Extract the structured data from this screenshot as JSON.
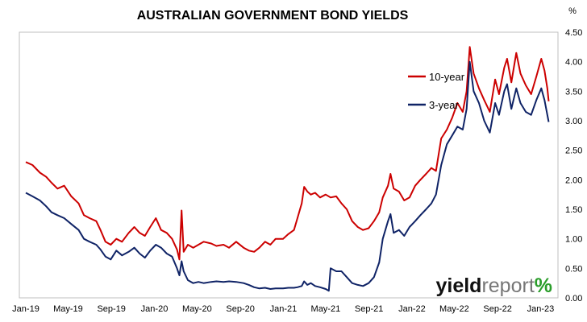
{
  "chart_data": {
    "type": "line",
    "title": "AUSTRALIAN GOVERNMENT BOND YIELDS",
    "xlabel": "",
    "ylabel": "%",
    "ylim": [
      0,
      4.5
    ],
    "y_ticks": [
      "0.00",
      "0.50",
      "1.00",
      "1.50",
      "2.00",
      "2.50",
      "3.00",
      "3.50",
      "4.00",
      "4.50"
    ],
    "x_ticks": [
      "Jan-19",
      "May-19",
      "Sep-19",
      "Jan-20",
      "May-20",
      "Sep-20",
      "Jan-21",
      "May-21",
      "Sep-21",
      "Jan-22",
      "May-22",
      "Sep-22",
      "Jan-23"
    ],
    "grid": false,
    "legend_position": "upper-right",
    "series": [
      {
        "name": "10-year",
        "color": "#cc0000",
        "points": [
          [
            "2019-01-01",
            2.3
          ],
          [
            "2019-01-20",
            2.25
          ],
          [
            "2019-02-10",
            2.12
          ],
          [
            "2019-02-28",
            2.05
          ],
          [
            "2019-03-15",
            1.95
          ],
          [
            "2019-04-01",
            1.85
          ],
          [
            "2019-04-20",
            1.9
          ],
          [
            "2019-05-10",
            1.72
          ],
          [
            "2019-05-31",
            1.6
          ],
          [
            "2019-06-15",
            1.4
          ],
          [
            "2019-07-01",
            1.35
          ],
          [
            "2019-07-20",
            1.3
          ],
          [
            "2019-08-01",
            1.15
          ],
          [
            "2019-08-15",
            0.95
          ],
          [
            "2019-08-30",
            0.9
          ],
          [
            "2019-09-15",
            1.0
          ],
          [
            "2019-10-01",
            0.95
          ],
          [
            "2019-10-20",
            1.1
          ],
          [
            "2019-11-05",
            1.2
          ],
          [
            "2019-11-20",
            1.1
          ],
          [
            "2019-12-05",
            1.05
          ],
          [
            "2019-12-20",
            1.2
          ],
          [
            "2020-01-05",
            1.35
          ],
          [
            "2020-01-20",
            1.15
          ],
          [
            "2020-02-05",
            1.1
          ],
          [
            "2020-02-20",
            1.0
          ],
          [
            "2020-03-05",
            0.82
          ],
          [
            "2020-03-12",
            0.65
          ],
          [
            "2020-03-18",
            1.48
          ],
          [
            "2020-03-24",
            0.78
          ],
          [
            "2020-04-05",
            0.9
          ],
          [
            "2020-04-20",
            0.85
          ],
          [
            "2020-05-05",
            0.9
          ],
          [
            "2020-05-20",
            0.95
          ],
          [
            "2020-06-10",
            0.92
          ],
          [
            "2020-06-25",
            0.88
          ],
          [
            "2020-07-15",
            0.9
          ],
          [
            "2020-07-31",
            0.85
          ],
          [
            "2020-08-20",
            0.95
          ],
          [
            "2020-09-10",
            0.85
          ],
          [
            "2020-09-25",
            0.8
          ],
          [
            "2020-10-10",
            0.78
          ],
          [
            "2020-10-25",
            0.85
          ],
          [
            "2020-11-10",
            0.95
          ],
          [
            "2020-11-25",
            0.9
          ],
          [
            "2020-12-10",
            1.0
          ],
          [
            "2020-12-31",
            1.0
          ],
          [
            "2021-01-15",
            1.08
          ],
          [
            "2021-01-31",
            1.15
          ],
          [
            "2021-02-10",
            1.35
          ],
          [
            "2021-02-22",
            1.6
          ],
          [
            "2021-03-01",
            1.88
          ],
          [
            "2021-03-10",
            1.8
          ],
          [
            "2021-03-20",
            1.75
          ],
          [
            "2021-04-01",
            1.78
          ],
          [
            "2021-04-15",
            1.7
          ],
          [
            "2021-05-01",
            1.75
          ],
          [
            "2021-05-15",
            1.7
          ],
          [
            "2021-05-31",
            1.72
          ],
          [
            "2021-06-15",
            1.6
          ],
          [
            "2021-06-30",
            1.5
          ],
          [
            "2021-07-15",
            1.3
          ],
          [
            "2021-07-31",
            1.2
          ],
          [
            "2021-08-15",
            1.15
          ],
          [
            "2021-08-31",
            1.18
          ],
          [
            "2021-09-15",
            1.3
          ],
          [
            "2021-09-30",
            1.45
          ],
          [
            "2021-10-10",
            1.7
          ],
          [
            "2021-10-25",
            1.9
          ],
          [
            "2021-11-01",
            2.1
          ],
          [
            "2021-11-10",
            1.85
          ],
          [
            "2021-11-25",
            1.8
          ],
          [
            "2021-12-10",
            1.65
          ],
          [
            "2021-12-25",
            1.7
          ],
          [
            "2022-01-10",
            1.9
          ],
          [
            "2022-01-25",
            2.0
          ],
          [
            "2022-02-10",
            2.1
          ],
          [
            "2022-02-25",
            2.2
          ],
          [
            "2022-03-10",
            2.15
          ],
          [
            "2022-03-25",
            2.7
          ],
          [
            "2022-04-10",
            2.85
          ],
          [
            "2022-04-25",
            3.05
          ],
          [
            "2022-05-10",
            3.3
          ],
          [
            "2022-05-25",
            3.15
          ],
          [
            "2022-06-05",
            3.5
          ],
          [
            "2022-06-14",
            4.25
          ],
          [
            "2022-06-25",
            3.8
          ],
          [
            "2022-07-10",
            3.55
          ],
          [
            "2022-07-25",
            3.35
          ],
          [
            "2022-08-10",
            3.15
          ],
          [
            "2022-08-25",
            3.7
          ],
          [
            "2022-09-05",
            3.45
          ],
          [
            "2022-09-20",
            3.9
          ],
          [
            "2022-09-28",
            4.05
          ],
          [
            "2022-10-10",
            3.65
          ],
          [
            "2022-10-24",
            4.15
          ],
          [
            "2022-11-05",
            3.8
          ],
          [
            "2022-11-20",
            3.6
          ],
          [
            "2022-12-05",
            3.45
          ],
          [
            "2022-12-20",
            3.75
          ],
          [
            "2023-01-03",
            4.05
          ],
          [
            "2023-01-12",
            3.85
          ],
          [
            "2023-01-20",
            3.55
          ],
          [
            "2023-01-24",
            3.33
          ]
        ]
      },
      {
        "name": "3-year",
        "color": "#0f2366",
        "points": [
          [
            "2019-01-01",
            1.78
          ],
          [
            "2019-01-20",
            1.72
          ],
          [
            "2019-02-10",
            1.65
          ],
          [
            "2019-02-28",
            1.55
          ],
          [
            "2019-03-15",
            1.45
          ],
          [
            "2019-04-01",
            1.4
          ],
          [
            "2019-04-20",
            1.35
          ],
          [
            "2019-05-10",
            1.25
          ],
          [
            "2019-05-31",
            1.15
          ],
          [
            "2019-06-15",
            1.0
          ],
          [
            "2019-07-01",
            0.95
          ],
          [
            "2019-07-20",
            0.9
          ],
          [
            "2019-08-01",
            0.82
          ],
          [
            "2019-08-15",
            0.7
          ],
          [
            "2019-08-30",
            0.65
          ],
          [
            "2019-09-15",
            0.8
          ],
          [
            "2019-10-01",
            0.72
          ],
          [
            "2019-10-20",
            0.78
          ],
          [
            "2019-11-05",
            0.85
          ],
          [
            "2019-11-20",
            0.75
          ],
          [
            "2019-12-05",
            0.68
          ],
          [
            "2019-12-20",
            0.8
          ],
          [
            "2020-01-05",
            0.9
          ],
          [
            "2020-01-20",
            0.85
          ],
          [
            "2020-02-05",
            0.75
          ],
          [
            "2020-02-20",
            0.7
          ],
          [
            "2020-03-05",
            0.5
          ],
          [
            "2020-03-12",
            0.38
          ],
          [
            "2020-03-18",
            0.62
          ],
          [
            "2020-03-24",
            0.45
          ],
          [
            "2020-04-05",
            0.3
          ],
          [
            "2020-04-20",
            0.25
          ],
          [
            "2020-05-05",
            0.27
          ],
          [
            "2020-05-20",
            0.25
          ],
          [
            "2020-06-10",
            0.27
          ],
          [
            "2020-06-25",
            0.28
          ],
          [
            "2020-07-15",
            0.27
          ],
          [
            "2020-07-31",
            0.28
          ],
          [
            "2020-08-20",
            0.27
          ],
          [
            "2020-09-10",
            0.25
          ],
          [
            "2020-09-25",
            0.22
          ],
          [
            "2020-10-10",
            0.18
          ],
          [
            "2020-10-25",
            0.16
          ],
          [
            "2020-11-10",
            0.17
          ],
          [
            "2020-11-25",
            0.15
          ],
          [
            "2020-12-10",
            0.16
          ],
          [
            "2020-12-31",
            0.16
          ],
          [
            "2021-01-15",
            0.17
          ],
          [
            "2021-01-31",
            0.17
          ],
          [
            "2021-02-10",
            0.18
          ],
          [
            "2021-02-22",
            0.2
          ],
          [
            "2021-03-01",
            0.28
          ],
          [
            "2021-03-10",
            0.22
          ],
          [
            "2021-03-20",
            0.25
          ],
          [
            "2021-04-01",
            0.2
          ],
          [
            "2021-04-15",
            0.18
          ],
          [
            "2021-05-01",
            0.15
          ],
          [
            "2021-05-10",
            0.12
          ],
          [
            "2021-05-15",
            0.5
          ],
          [
            "2021-05-31",
            0.45
          ],
          [
            "2021-06-15",
            0.45
          ],
          [
            "2021-06-30",
            0.35
          ],
          [
            "2021-07-15",
            0.25
          ],
          [
            "2021-07-31",
            0.22
          ],
          [
            "2021-08-15",
            0.2
          ],
          [
            "2021-08-31",
            0.25
          ],
          [
            "2021-09-15",
            0.35
          ],
          [
            "2021-09-30",
            0.6
          ],
          [
            "2021-10-10",
            1.0
          ],
          [
            "2021-10-25",
            1.3
          ],
          [
            "2021-11-01",
            1.42
          ],
          [
            "2021-11-10",
            1.1
          ],
          [
            "2021-11-25",
            1.15
          ],
          [
            "2021-12-10",
            1.05
          ],
          [
            "2021-12-25",
            1.2
          ],
          [
            "2022-01-10",
            1.3
          ],
          [
            "2022-01-25",
            1.4
          ],
          [
            "2022-02-10",
            1.5
          ],
          [
            "2022-02-25",
            1.6
          ],
          [
            "2022-03-10",
            1.75
          ],
          [
            "2022-03-25",
            2.25
          ],
          [
            "2022-04-10",
            2.6
          ],
          [
            "2022-04-25",
            2.75
          ],
          [
            "2022-05-10",
            2.9
          ],
          [
            "2022-05-25",
            2.85
          ],
          [
            "2022-06-05",
            3.2
          ],
          [
            "2022-06-14",
            4.0
          ],
          [
            "2022-06-25",
            3.5
          ],
          [
            "2022-07-10",
            3.3
          ],
          [
            "2022-07-25",
            3.0
          ],
          [
            "2022-08-10",
            2.8
          ],
          [
            "2022-08-25",
            3.3
          ],
          [
            "2022-09-05",
            3.1
          ],
          [
            "2022-09-20",
            3.5
          ],
          [
            "2022-09-28",
            3.62
          ],
          [
            "2022-10-10",
            3.2
          ],
          [
            "2022-10-24",
            3.55
          ],
          [
            "2022-11-05",
            3.3
          ],
          [
            "2022-11-20",
            3.15
          ],
          [
            "2022-12-05",
            3.1
          ],
          [
            "2022-12-20",
            3.35
          ],
          [
            "2023-01-03",
            3.55
          ],
          [
            "2023-01-12",
            3.35
          ],
          [
            "2023-01-20",
            3.1
          ],
          [
            "2023-01-24",
            2.98
          ]
        ]
      }
    ]
  },
  "logo": {
    "text_bold": "yield",
    "text_light": "report",
    "text_symbol": "%",
    "color_bold": "#111111",
    "color_light": "#777777",
    "color_symbol": "#2a9d2a"
  },
  "style": {
    "axis_color": "#bfbfbf"
  }
}
